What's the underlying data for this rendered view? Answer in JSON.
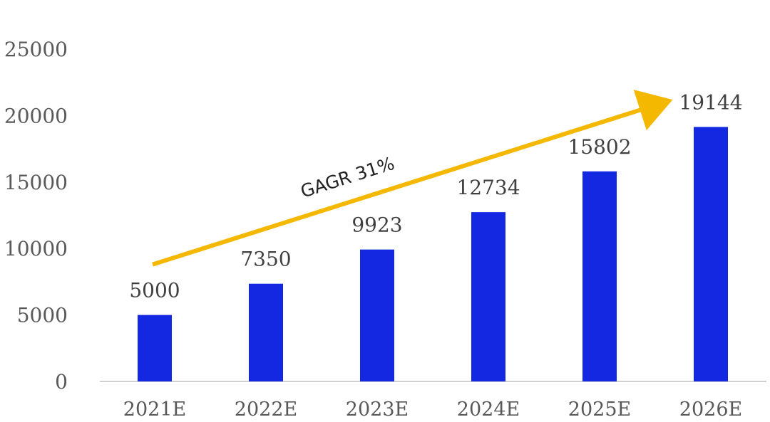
{
  "chart_data": {
    "type": "bar",
    "title": "",
    "xlabel": "",
    "ylabel": "",
    "categories": [
      "2021E",
      "2022E",
      "2023E",
      "2024E",
      "2025E",
      "2026E"
    ],
    "values": [
      5000,
      7350,
      9923,
      12734,
      15802,
      19144
    ],
    "ylim": [
      0,
      25000
    ],
    "yticks": [
      0,
      5000,
      10000,
      15000,
      20000,
      25000
    ],
    "grid": false,
    "legend": "none",
    "bar_color": "#1328E0",
    "axis_color": "#D0D0D0",
    "annotation": {
      "text": "GAGR  31%",
      "arrow_color": "#F5B800",
      "from": {
        "category": "2021E",
        "value": 8800
      },
      "to": {
        "category": "2026E",
        "value": 21000
      }
    }
  }
}
